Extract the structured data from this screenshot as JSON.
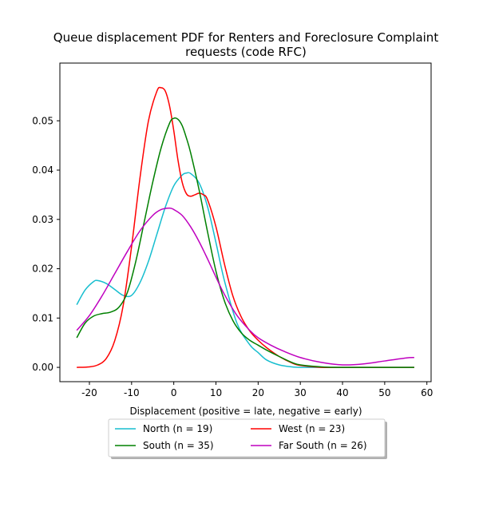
{
  "chart_data": {
    "type": "line",
    "title_lines": [
      "Queue displacement PDF for Renters and Foreclosure Complaint",
      "requests (code RFC)"
    ],
    "xlabel": "Displacement (positive = late, negative = early)",
    "ylabel": "",
    "xlim": [
      -27,
      61
    ],
    "ylim": [
      -0.0029,
      0.0617
    ],
    "xticks": [
      -20,
      -10,
      0,
      10,
      20,
      30,
      40,
      50,
      60
    ],
    "yticks": [
      0.0,
      0.01,
      0.02,
      0.03,
      0.04,
      0.05
    ],
    "ytick_labels": [
      "0.00",
      "0.01",
      "0.02",
      "0.03",
      "0.04",
      "0.05"
    ],
    "grid": false,
    "legend_placement": "below-center",
    "series": [
      {
        "name": "North (n = 19)",
        "color": "#17becf",
        "x": [
          -23,
          -21,
          -19,
          -18,
          -16,
          -14,
          -12,
          -10,
          -8,
          -6,
          -4,
          -2,
          0,
          2,
          3,
          4,
          6,
          8,
          10,
          12,
          15,
          18,
          20,
          22,
          25,
          28,
          30,
          35,
          40,
          45,
          50,
          57
        ],
        "y": [
          0.0127,
          0.0157,
          0.0174,
          0.0176,
          0.017,
          0.0158,
          0.0146,
          0.0146,
          0.0172,
          0.0215,
          0.027,
          0.0325,
          0.0368,
          0.039,
          0.0394,
          0.0393,
          0.0374,
          0.0326,
          0.0253,
          0.0176,
          0.0089,
          0.0046,
          0.003,
          0.0015,
          0.0005,
          0.0001,
          0.0,
          0.0,
          0.0,
          0.0,
          0.0,
          0.0
        ]
      },
      {
        "name": "West (n = 23)",
        "color": "#ff0000",
        "x": [
          -23,
          -20,
          -18,
          -16,
          -14,
          -12,
          -10,
          -8,
          -6,
          -4,
          -3,
          -2,
          -1,
          0,
          1,
          2,
          3,
          4,
          5,
          6,
          7,
          8,
          10,
          12,
          14,
          16,
          18,
          20,
          22,
          25,
          28,
          30,
          35,
          40,
          57
        ],
        "y": [
          0.0,
          0.0001,
          0.0005,
          0.0018,
          0.0054,
          0.0125,
          0.0245,
          0.0385,
          0.05,
          0.056,
          0.0567,
          0.056,
          0.053,
          0.048,
          0.042,
          0.0375,
          0.0352,
          0.0347,
          0.035,
          0.0353,
          0.035,
          0.034,
          0.0285,
          0.021,
          0.0145,
          0.0102,
          0.0074,
          0.0055,
          0.004,
          0.0022,
          0.0009,
          0.0004,
          0.0,
          0.0,
          0.0
        ]
      },
      {
        "name": "South (n = 35)",
        "color": "#008000",
        "x": [
          -23,
          -21,
          -19,
          -17,
          -15,
          -13,
          -11,
          -9,
          -7,
          -5,
          -3,
          -1,
          0,
          1,
          2,
          3,
          4,
          6,
          8,
          10,
          12,
          14,
          16,
          18,
          20,
          22,
          25,
          28,
          30,
          35,
          40,
          57
        ],
        "y": [
          0.006,
          0.009,
          0.0104,
          0.0109,
          0.0112,
          0.0122,
          0.0152,
          0.0215,
          0.0295,
          0.0375,
          0.0445,
          0.0495,
          0.0505,
          0.0503,
          0.049,
          0.0465,
          0.0435,
          0.036,
          0.0275,
          0.0195,
          0.0135,
          0.0095,
          0.007,
          0.0055,
          0.0045,
          0.0035,
          0.0022,
          0.001,
          0.0005,
          0.0001,
          0.0,
          0.0
        ]
      },
      {
        "name": "Far South (n = 26)",
        "color": "#bf00bf",
        "x": [
          -23,
          -20,
          -17,
          -14,
          -11,
          -8,
          -5,
          -3,
          -1,
          0,
          2,
          4,
          6,
          8,
          10,
          12,
          15,
          18,
          20,
          23,
          26,
          30,
          35,
          40,
          45,
          50,
          55,
          57
        ],
        "y": [
          0.0075,
          0.0105,
          0.0145,
          0.019,
          0.0235,
          0.0277,
          0.0308,
          0.032,
          0.0323,
          0.032,
          0.0308,
          0.0285,
          0.0255,
          0.022,
          0.0183,
          0.0148,
          0.0105,
          0.0075,
          0.006,
          0.0045,
          0.0033,
          0.002,
          0.001,
          0.0005,
          0.0007,
          0.0013,
          0.0019,
          0.002
        ]
      }
    ]
  }
}
